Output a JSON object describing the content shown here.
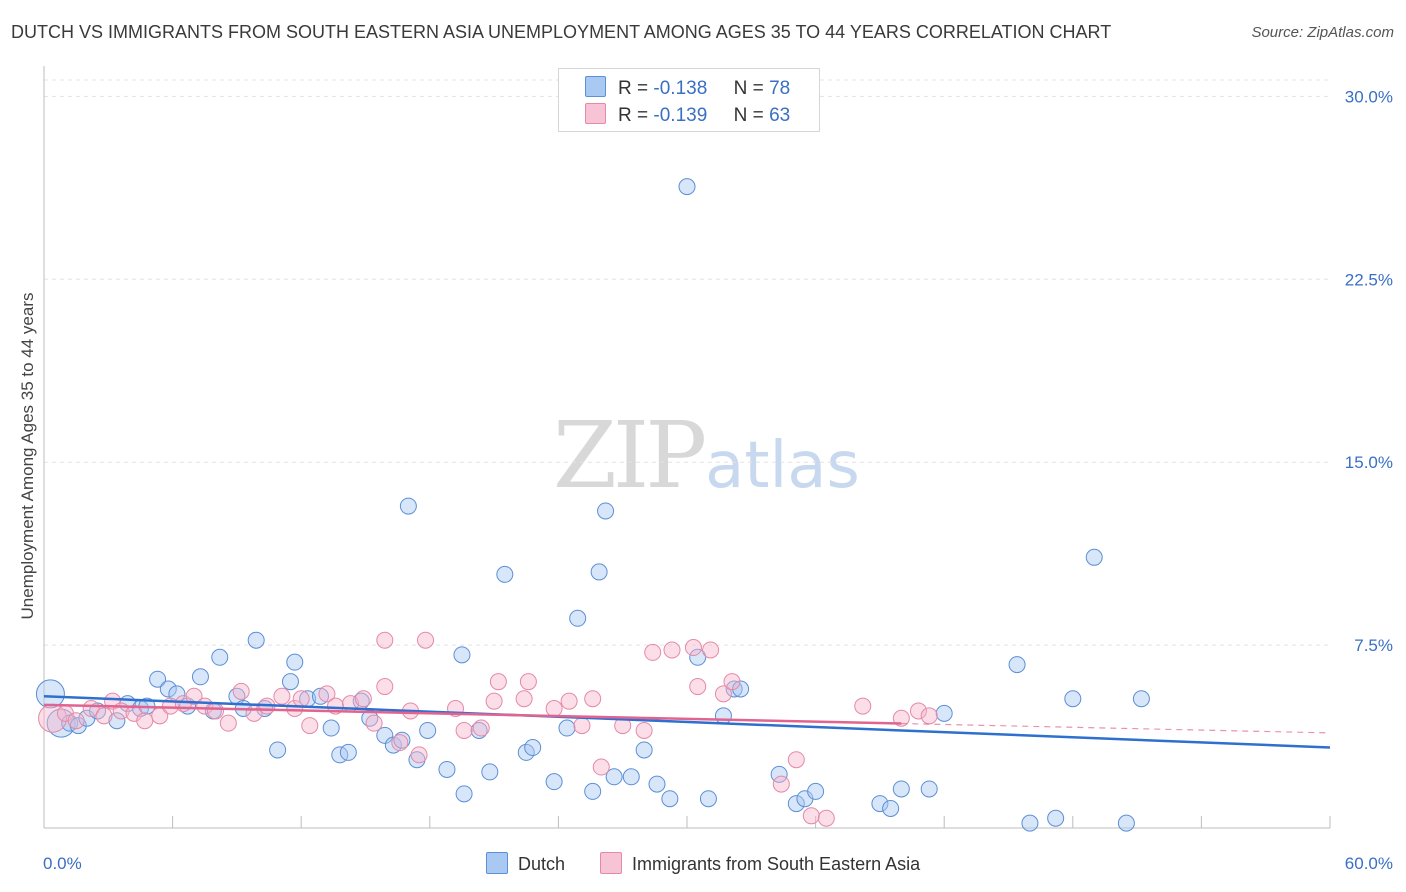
{
  "title": "DUTCH VS IMMIGRANTS FROM SOUTH EASTERN ASIA UNEMPLOYMENT AMONG AGES 35 TO 44 YEARS CORRELATION CHART",
  "source": "Source: ZipAtlas.com",
  "watermark": {
    "zip": "ZIP",
    "atlas": "atlas"
  },
  "legend": {
    "r_label": "R =",
    "n_label": "N =",
    "dutch": {
      "r": "-0.138",
      "n": "78"
    },
    "immigrants": {
      "r": "-0.139",
      "n": "63"
    }
  },
  "colors": {
    "dutch_fill": "#a9c8f2",
    "dutch_stroke": "#5b8fd6",
    "dutch_line": "#2f6fcf",
    "imm_fill": "#f6b6cb",
    "imm_stroke": "#e58aa6",
    "imm_line": "#e0648f",
    "axis_text": "#3a6fc4",
    "grid": "#e3e3e3"
  },
  "chart_data": {
    "type": "scatter",
    "title": "DUTCH VS IMMIGRANTS FROM SOUTH EASTERN ASIA UNEMPLOYMENT AMONG AGES 35 TO 44 YEARS CORRELATION CHART",
    "xlabel": "",
    "ylabel": "Unemployment Among Ages 35 to 44 years",
    "xlim": [
      0,
      60
    ],
    "ylim": [
      0,
      31
    ],
    "x_tick_labels": [
      "0.0%",
      "60.0%"
    ],
    "y_ticks": [
      7.5,
      15.0,
      22.5,
      30.0
    ],
    "y_tick_labels": [
      "7.5%",
      "15.0%",
      "22.5%",
      "30.0%"
    ],
    "grid": true,
    "series": [
      {
        "name": "Dutch",
        "trend": {
          "x": [
            0,
            60
          ],
          "y": [
            5.4,
            3.3
          ],
          "dashed_from": null
        },
        "points": [
          {
            "x": 0.3,
            "y": 5.5,
            "big": true
          },
          {
            "x": 0.8,
            "y": 4.3,
            "big": true
          },
          {
            "x": 1.2,
            "y": 4.3
          },
          {
            "x": 1.6,
            "y": 4.2
          },
          {
            "x": 2.0,
            "y": 4.5
          },
          {
            "x": 2.5,
            "y": 4.8
          },
          {
            "x": 3.4,
            "y": 4.4
          },
          {
            "x": 3.9,
            "y": 5.1
          },
          {
            "x": 4.5,
            "y": 4.9
          },
          {
            "x": 4.8,
            "y": 5.0
          },
          {
            "x": 5.3,
            "y": 6.1
          },
          {
            "x": 5.8,
            "y": 5.7
          },
          {
            "x": 6.2,
            "y": 5.5
          },
          {
            "x": 6.7,
            "y": 5.0
          },
          {
            "x": 7.3,
            "y": 6.2
          },
          {
            "x": 7.9,
            "y": 4.8
          },
          {
            "x": 8.2,
            "y": 7.0
          },
          {
            "x": 9.0,
            "y": 5.4
          },
          {
            "x": 9.3,
            "y": 4.9
          },
          {
            "x": 9.9,
            "y": 7.7
          },
          {
            "x": 10.3,
            "y": 4.9
          },
          {
            "x": 10.9,
            "y": 3.2
          },
          {
            "x": 11.5,
            "y": 6.0
          },
          {
            "x": 11.7,
            "y": 6.8
          },
          {
            "x": 12.3,
            "y": 5.3
          },
          {
            "x": 12.9,
            "y": 5.4
          },
          {
            "x": 13.4,
            "y": 4.1
          },
          {
            "x": 13.8,
            "y": 3.0
          },
          {
            "x": 14.2,
            "y": 3.1
          },
          {
            "x": 14.8,
            "y": 5.2
          },
          {
            "x": 15.2,
            "y": 4.5
          },
          {
            "x": 15.9,
            "y": 3.8
          },
          {
            "x": 16.3,
            "y": 3.4
          },
          {
            "x": 16.7,
            "y": 3.6
          },
          {
            "x": 17.0,
            "y": 13.2
          },
          {
            "x": 17.4,
            "y": 2.8
          },
          {
            "x": 17.9,
            "y": 4.0
          },
          {
            "x": 18.8,
            "y": 2.4
          },
          {
            "x": 19.5,
            "y": 7.1
          },
          {
            "x": 19.6,
            "y": 1.4
          },
          {
            "x": 20.3,
            "y": 4.0
          },
          {
            "x": 20.8,
            "y": 2.3
          },
          {
            "x": 21.5,
            "y": 10.4
          },
          {
            "x": 22.5,
            "y": 3.1
          },
          {
            "x": 22.8,
            "y": 3.3
          },
          {
            "x": 23.8,
            "y": 1.9
          },
          {
            "x": 24.4,
            "y": 4.1
          },
          {
            "x": 24.9,
            "y": 8.6
          },
          {
            "x": 25.6,
            "y": 1.5
          },
          {
            "x": 25.9,
            "y": 10.5
          },
          {
            "x": 26.2,
            "y": 13.0
          },
          {
            "x": 26.6,
            "y": 2.1
          },
          {
            "x": 27.4,
            "y": 2.1
          },
          {
            "x": 28.0,
            "y": 3.2
          },
          {
            "x": 28.6,
            "y": 1.8
          },
          {
            "x": 29.2,
            "y": 1.2
          },
          {
            "x": 30.0,
            "y": 26.3
          },
          {
            "x": 30.5,
            "y": 7.0
          },
          {
            "x": 31.0,
            "y": 1.2
          },
          {
            "x": 31.7,
            "y": 4.6
          },
          {
            "x": 32.2,
            "y": 5.7
          },
          {
            "x": 32.5,
            "y": 5.7
          },
          {
            "x": 34.3,
            "y": 2.2
          },
          {
            "x": 35.1,
            "y": 1.0
          },
          {
            "x": 35.5,
            "y": 1.2
          },
          {
            "x": 36.0,
            "y": 1.5
          },
          {
            "x": 39.0,
            "y": 1.0
          },
          {
            "x": 39.5,
            "y": 0.8
          },
          {
            "x": 40.0,
            "y": 1.6
          },
          {
            "x": 41.3,
            "y": 1.6
          },
          {
            "x": 42.0,
            "y": 4.7
          },
          {
            "x": 45.4,
            "y": 6.7
          },
          {
            "x": 46.0,
            "y": 0.2
          },
          {
            "x": 47.2,
            "y": 0.4
          },
          {
            "x": 48.0,
            "y": 5.3
          },
          {
            "x": 49.0,
            "y": 11.1
          },
          {
            "x": 50.5,
            "y": 0.2
          },
          {
            "x": 51.2,
            "y": 5.3
          }
        ]
      },
      {
        "name": "Immigrants from South Eastern Asia",
        "trend": {
          "x": [
            0,
            60
          ],
          "y": [
            5.05,
            3.9
          ],
          "dashed_from": 40
        },
        "points": [
          {
            "x": 0.4,
            "y": 4.5,
            "big": true
          },
          {
            "x": 1.0,
            "y": 4.7
          },
          {
            "x": 1.5,
            "y": 4.4
          },
          {
            "x": 2.2,
            "y": 4.9
          },
          {
            "x": 2.8,
            "y": 4.6
          },
          {
            "x": 3.2,
            "y": 5.2
          },
          {
            "x": 3.6,
            "y": 4.8
          },
          {
            "x": 4.2,
            "y": 4.7
          },
          {
            "x": 4.7,
            "y": 4.4
          },
          {
            "x": 5.4,
            "y": 4.6
          },
          {
            "x": 5.9,
            "y": 5.0
          },
          {
            "x": 6.5,
            "y": 5.1
          },
          {
            "x": 7.0,
            "y": 5.4
          },
          {
            "x": 7.5,
            "y": 5.0
          },
          {
            "x": 8.0,
            "y": 4.8
          },
          {
            "x": 8.6,
            "y": 4.3
          },
          {
            "x": 9.2,
            "y": 5.6
          },
          {
            "x": 9.8,
            "y": 4.7
          },
          {
            "x": 10.4,
            "y": 5.0
          },
          {
            "x": 11.1,
            "y": 5.4
          },
          {
            "x": 11.7,
            "y": 4.9
          },
          {
            "x": 12.0,
            "y": 5.3
          },
          {
            "x": 12.4,
            "y": 4.2
          },
          {
            "x": 13.2,
            "y": 5.5
          },
          {
            "x": 13.6,
            "y": 5.0
          },
          {
            "x": 14.3,
            "y": 5.1
          },
          {
            "x": 14.9,
            "y": 5.3
          },
          {
            "x": 15.4,
            "y": 4.3
          },
          {
            "x": 15.9,
            "y": 5.8
          },
          {
            "x": 15.9,
            "y": 7.7
          },
          {
            "x": 16.6,
            "y": 3.5
          },
          {
            "x": 17.1,
            "y": 4.8
          },
          {
            "x": 17.5,
            "y": 3.0
          },
          {
            "x": 17.8,
            "y": 7.7
          },
          {
            "x": 19.2,
            "y": 4.9
          },
          {
            "x": 19.6,
            "y": 4.0
          },
          {
            "x": 20.4,
            "y": 4.1
          },
          {
            "x": 21.0,
            "y": 5.2
          },
          {
            "x": 21.2,
            "y": 6.0
          },
          {
            "x": 22.4,
            "y": 5.3
          },
          {
            "x": 22.6,
            "y": 6.0
          },
          {
            "x": 23.8,
            "y": 4.9
          },
          {
            "x": 24.5,
            "y": 5.2
          },
          {
            "x": 25.1,
            "y": 4.2
          },
          {
            "x": 25.6,
            "y": 5.3
          },
          {
            "x": 26.0,
            "y": 2.5
          },
          {
            "x": 27.0,
            "y": 4.2
          },
          {
            "x": 28.0,
            "y": 4.0
          },
          {
            "x": 28.4,
            "y": 7.2
          },
          {
            "x": 29.3,
            "y": 7.3
          },
          {
            "x": 30.3,
            "y": 7.4
          },
          {
            "x": 30.5,
            "y": 5.8
          },
          {
            "x": 31.1,
            "y": 7.3
          },
          {
            "x": 31.7,
            "y": 5.5
          },
          {
            "x": 32.1,
            "y": 6.0
          },
          {
            "x": 34.4,
            "y": 1.8
          },
          {
            "x": 35.1,
            "y": 2.8
          },
          {
            "x": 35.8,
            "y": 0.5
          },
          {
            "x": 36.5,
            "y": 0.4
          },
          {
            "x": 38.2,
            "y": 5.0
          },
          {
            "x": 40.0,
            "y": 4.5
          },
          {
            "x": 40.8,
            "y": 4.8
          },
          {
            "x": 41.3,
            "y": 4.6
          }
        ]
      }
    ]
  },
  "bottom_legend": {
    "dutch": "Dutch",
    "immigrants": "Immigrants from South Eastern Asia"
  }
}
